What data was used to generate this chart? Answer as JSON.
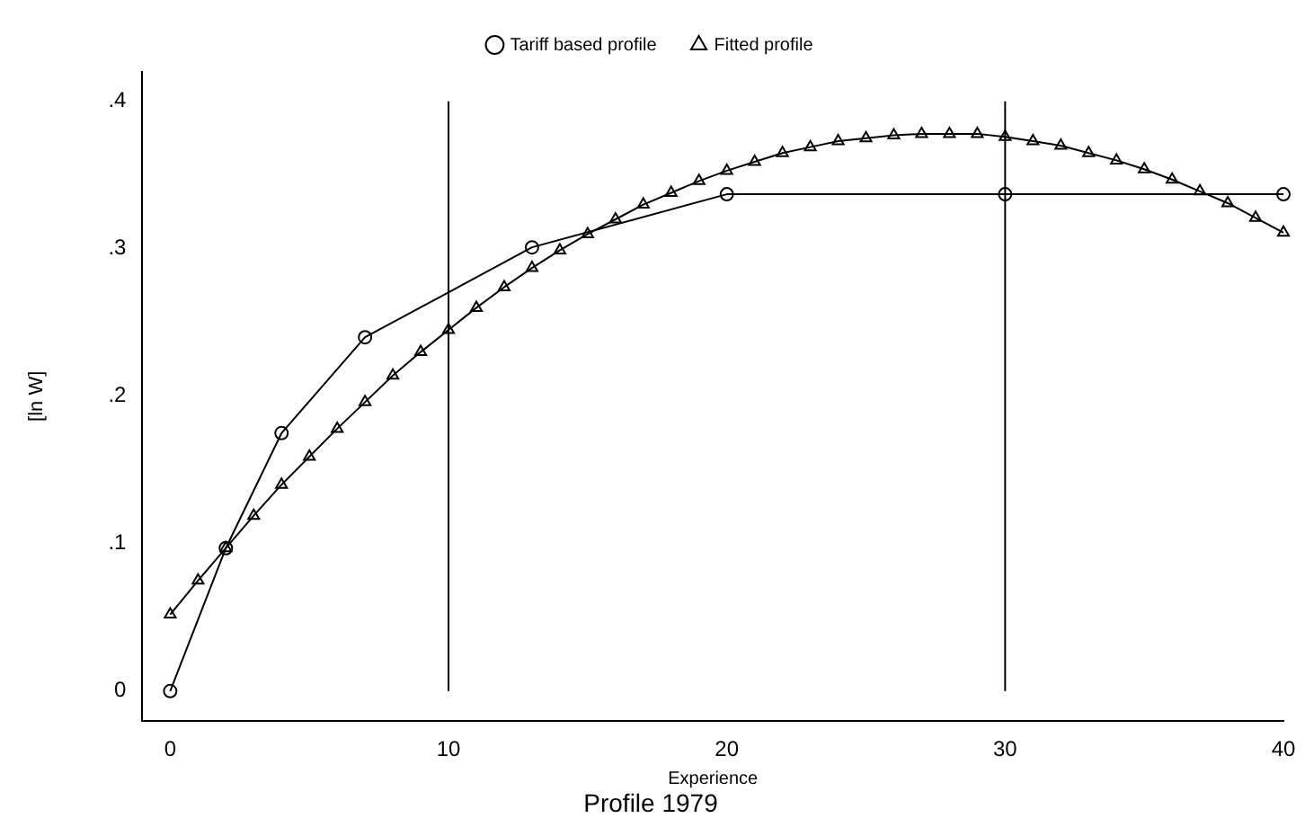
{
  "chart_data": {
    "type": "line",
    "title": "Profile 1979",
    "xlabel": "Experience",
    "ylabel": "[ln W]",
    "legend": "top",
    "grid": false,
    "xlim": [
      -1,
      40
    ],
    "xticks": [
      0,
      10,
      20,
      30,
      40
    ],
    "ylim": [
      -0.02,
      0.42
    ],
    "yticks": [
      0,
      {
        "value": 0.1,
        "label": ".1"
      },
      {
        "value": 0.2,
        "label": ".2"
      },
      {
        "value": 0.3,
        "label": ".3"
      },
      {
        "value": 0.4,
        "label": ".4"
      }
    ],
    "ref_lines": [
      {
        "axis": "x",
        "value": 10,
        "color": "#000000"
      },
      {
        "axis": "x",
        "value": 30,
        "color": "#000000"
      }
    ],
    "series": [
      {
        "name": "Tariff based profile",
        "color": "#000000",
        "marker": "circle",
        "x": [
          0,
          2,
          4,
          7,
          13,
          20,
          30,
          40
        ],
        "values": [
          0,
          0.097,
          0.175,
          0.24,
          0.301,
          0.337,
          0.337,
          0.337
        ]
      },
      {
        "name": "Fitted profile",
        "color": "#000000",
        "marker": "triangle",
        "x": [
          0,
          1,
          2,
          3,
          4,
          5,
          6,
          7,
          8,
          9,
          10,
          11,
          12,
          13,
          14,
          15,
          16,
          17,
          18,
          19,
          20,
          21,
          22,
          23,
          24,
          25,
          26,
          27,
          28,
          29,
          30,
          31,
          32,
          33,
          34,
          35,
          36,
          37,
          38,
          39,
          40
        ],
        "values": [
          0.052,
          0.075,
          0.097,
          0.119,
          0.14,
          0.159,
          0.178,
          0.196,
          0.214,
          0.23,
          0.245,
          0.26,
          0.274,
          0.287,
          0.299,
          0.31,
          0.32,
          0.33,
          0.338,
          0.346,
          0.353,
          0.359,
          0.365,
          0.369,
          0.373,
          0.375,
          0.377,
          0.378,
          0.378,
          0.378,
          0.376,
          0.373,
          0.37,
          0.365,
          0.36,
          0.354,
          0.347,
          0.339,
          0.331,
          0.321,
          0.311
        ]
      }
    ]
  }
}
